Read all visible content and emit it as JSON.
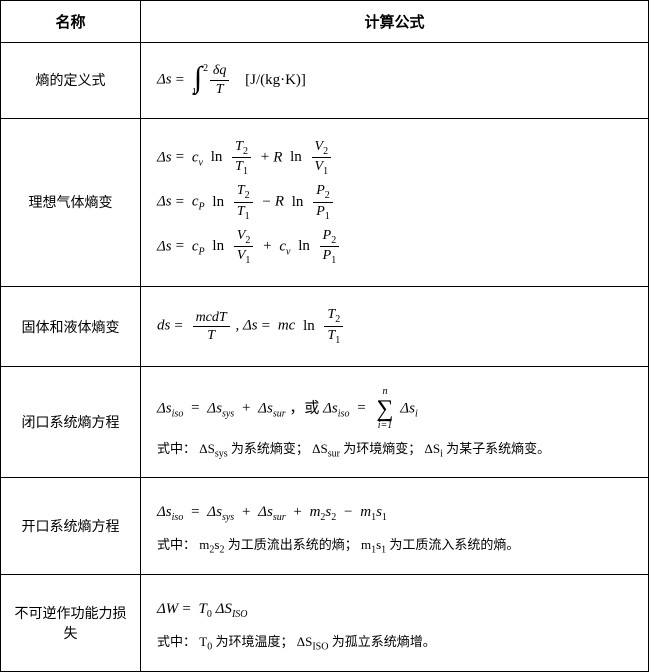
{
  "headers": {
    "name": "名称",
    "formula": "计算公式"
  },
  "rows": {
    "r1": {
      "name": "熵的定义式",
      "unit": "[J/(kg·K)]",
      "int_lo": "1",
      "int_hi": "2"
    },
    "r2": {
      "name": "理想气体熵变"
    },
    "r3": {
      "name": "固体和液体熵变"
    },
    "r4": {
      "name": "闭口系统熵方程",
      "note_prefix": "式中：",
      "v1": "ΔS",
      "s1": "sys",
      "t1": " 为系统熵变；",
      "v2": "ΔS",
      "s2": "sur",
      "t2": " 为环境熵变； ",
      "v3": "ΔS",
      "s3": "i",
      "t3": " 为某子系统熵变。",
      "sum_top": "n",
      "sum_bot": "i=1",
      "or": "，或"
    },
    "r5": {
      "name": "开口系统熵方程",
      "note_prefix": "式中：",
      "v1": "m",
      "s1": "2",
      "v2": "s",
      "s2": "2",
      "t1": " 为工质流出系统的熵；",
      "v3": "m",
      "s3": "1",
      "v4": "s",
      "s4": "1",
      "t2": " 为工质流入系统的熵。"
    },
    "r6": {
      "name": "不可逆作功能力损失",
      "note_prefix": "式中：",
      "v1": "T",
      "s1": "0",
      "t1": " 为环境温度；   ",
      "v2": "ΔS",
      "s2": "ISO",
      "t2": " 为孤立系统熵增。"
    }
  },
  "sym": {
    "Ds": "Δs",
    "eq": "=",
    "plus": "+",
    "minus": "−",
    "comma": " , ",
    "ln": "ln",
    "R": "R",
    "cv": "c",
    "v": "v",
    "cp": "c",
    "p": "P",
    "T": "T",
    "T1": "T",
    "T2": "T",
    "V": "V",
    "P": "P",
    "one": "1",
    "two": "2",
    "dq": "δq",
    "ds": "ds",
    "mcdt": "mcdT",
    "mc": "mc",
    "iso": "iso",
    "sys": "sys",
    "sur": "sur",
    "i": "i",
    "m": "m",
    "s": "s",
    "DW": "ΔW",
    "T0": "T",
    "zero": "0",
    "DS": "ΔS",
    "ISO": "ISO"
  }
}
